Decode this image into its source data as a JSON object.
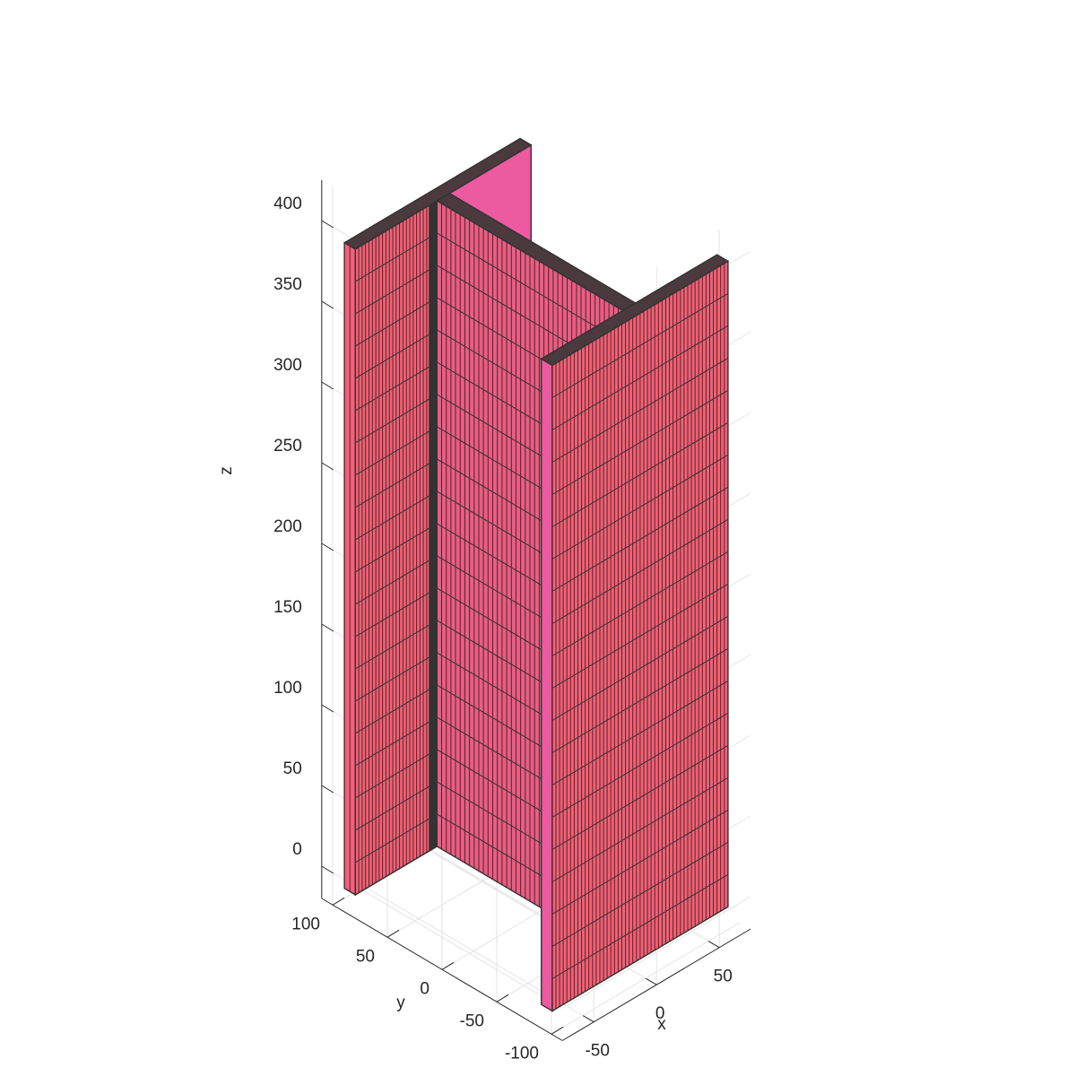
{
  "chart_data": {
    "type": "surface-3d",
    "title": "",
    "xlabel": "x",
    "ylabel": "y",
    "zlabel": "z",
    "xlim": [
      -75,
      75
    ],
    "ylim": [
      -110,
      110
    ],
    "zlim": [
      -20,
      425
    ],
    "xticks": [
      -50,
      0,
      50
    ],
    "yticks": [
      -100,
      -50,
      0,
      50,
      100
    ],
    "zticks": [
      0,
      50,
      100,
      150,
      200,
      250,
      300,
      350,
      400
    ],
    "grid": true,
    "legend": "none",
    "object": "I-beam column mesh",
    "dimensions": {
      "flange_width": 140,
      "flange_thickness": 10,
      "overall_depth": 190,
      "web_thickness": 10,
      "height": 400,
      "base_z": -10
    },
    "colors": {
      "face_front": "#ff5c73",
      "face_left": "#ff5c79",
      "face_web": "#f05a82",
      "face_back": "#ee5aa0",
      "edge": "#333333"
    }
  }
}
